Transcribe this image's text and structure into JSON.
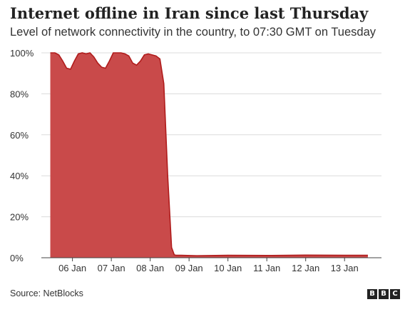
{
  "header": {
    "title": "Internet offline in Iran since last Thursday",
    "subtitle": "Level of network connectivity in the country, to 07:30 GMT on Tuesday"
  },
  "footer": {
    "source": "Source: NetBlocks",
    "logo_letters": [
      "B",
      "B",
      "C"
    ]
  },
  "chart_data": {
    "type": "area",
    "ylim": [
      0,
      100
    ],
    "y_ticks": [
      0,
      20,
      40,
      60,
      80,
      100
    ],
    "y_tick_labels": [
      "0%",
      "20%",
      "40%",
      "60%",
      "80%",
      "100%"
    ],
    "x_ticks": [
      1,
      2,
      3,
      4,
      5,
      6,
      7,
      8
    ],
    "x_tick_labels": [
      "06 Jan",
      "07 Jan",
      "08 Jan",
      "09 Jan",
      "10 Jan",
      "11 Jan",
      "12 Jan",
      "13 Jan"
    ],
    "xlim": [
      0.2,
      8.95
    ],
    "grid": true,
    "series": [
      {
        "color": "#c94a4a",
        "line_color": "#b01c1c",
        "x": [
          0.43,
          0.55,
          0.65,
          0.75,
          0.85,
          0.95,
          1.05,
          1.15,
          1.25,
          1.35,
          1.45,
          1.55,
          1.65,
          1.75,
          1.85,
          1.95,
          2.05,
          2.15,
          2.25,
          2.35,
          2.45,
          2.55,
          2.65,
          2.75,
          2.85,
          2.95,
          3.05,
          3.15,
          3.25,
          3.35,
          3.45,
          3.55,
          3.62,
          3.67,
          3.73,
          3.8,
          4.2,
          5.0,
          6.0,
          7.0,
          8.0,
          8.6
        ],
        "y": [
          100,
          100,
          99,
          96,
          92.5,
          92,
          96,
          99.5,
          100,
          99.5,
          100,
          98,
          95,
          93,
          92.5,
          96,
          100,
          100,
          100,
          99.5,
          98.5,
          95,
          94,
          96,
          99,
          99.5,
          99,
          98.5,
          97,
          85,
          40,
          5,
          1.4,
          1.2,
          1.2,
          1.2,
          1.0,
          1.2,
          1.1,
          1.3,
          1.2,
          1.2
        ]
      }
    ]
  }
}
